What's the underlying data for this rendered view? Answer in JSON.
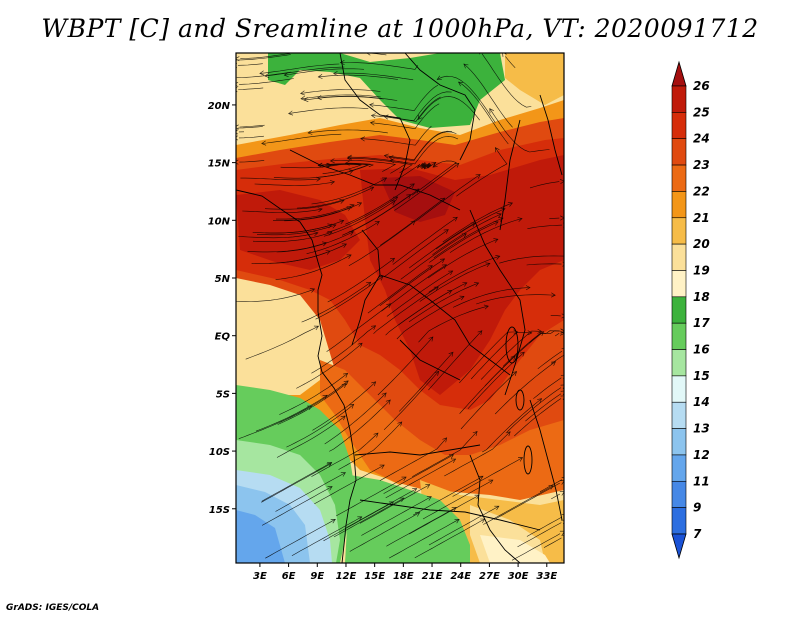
{
  "title": "WBPT [C] and Sreamline at 1000hPa, VT: 2020091712",
  "credit": "GrADS: IGES/COLA",
  "map": {
    "lat_labels": [
      {
        "label": "20N",
        "value": 20
      },
      {
        "label": "15N",
        "value": 15
      },
      {
        "label": "10N",
        "value": 10
      },
      {
        "label": "5N",
        "value": 5
      },
      {
        "label": "EQ",
        "value": 0
      },
      {
        "label": "5S",
        "value": -5
      },
      {
        "label": "10S",
        "value": -10
      },
      {
        "label": "15S",
        "value": -15
      }
    ],
    "lon_labels": [
      {
        "label": "3E",
        "value": 3
      },
      {
        "label": "6E",
        "value": 6
      },
      {
        "label": "9E",
        "value": 9
      },
      {
        "label": "12E",
        "value": 12
      },
      {
        "label": "15E",
        "value": 15
      },
      {
        "label": "18E",
        "value": 18
      },
      {
        "label": "21E",
        "value": 21
      },
      {
        "label": "24E",
        "value": 24
      },
      {
        "label": "27E",
        "value": 27
      },
      {
        "label": "30E",
        "value": 30
      },
      {
        "label": "33E",
        "value": 33
      }
    ],
    "lon_range": [
      0.5,
      34.8
    ],
    "lat_range": [
      -19.7,
      24.5
    ]
  },
  "colorbar": {
    "levels": [
      "26",
      "25",
      "24",
      "23",
      "22",
      "21",
      "20",
      "19",
      "18",
      "17",
      "16",
      "15",
      "14",
      "13",
      "12",
      "11",
      "9",
      "7"
    ],
    "colors": [
      "#a50f0f",
      "#c01a0a",
      "#d62d0a",
      "#e04a10",
      "#ec6a14",
      "#f39618",
      "#f6bc48",
      "#fbe09a",
      "#fff2c6",
      "#3cb23c",
      "#66cc5c",
      "#a6e6a0",
      "#e2f8f8",
      "#b6dcf2",
      "#8cc4ee",
      "#64a6ec",
      "#4688e6",
      "#2c6ee0",
      "#1a52d6"
    ]
  },
  "icons": {
    "colorbar-top-arrow": "triangle-up",
    "colorbar-bottom-arrow": "triangle-down"
  }
}
